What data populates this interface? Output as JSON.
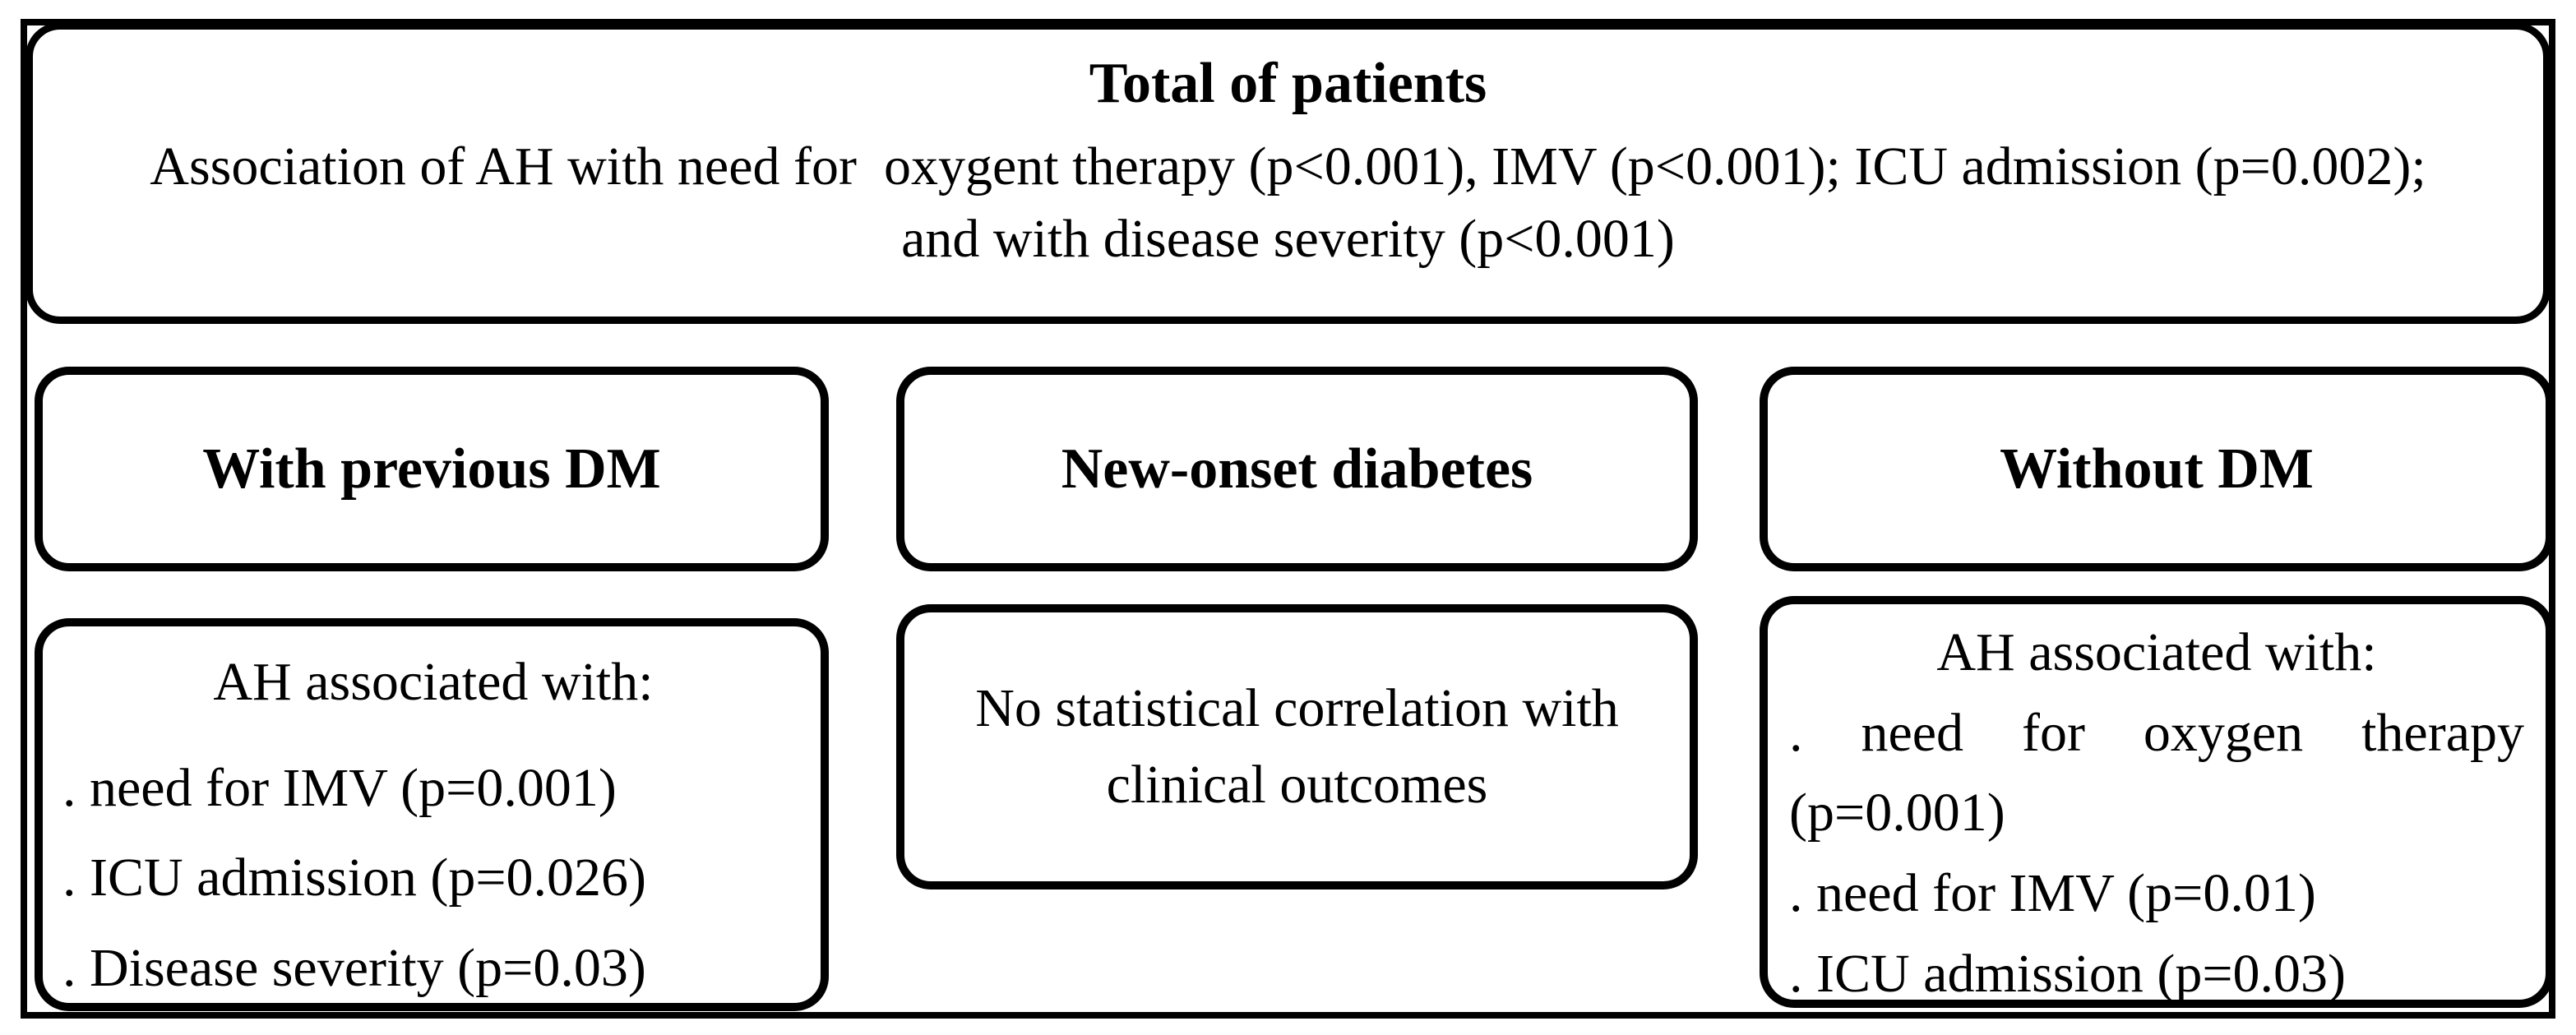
{
  "top_box": {
    "title": "Total of patients",
    "body": "Association of AH with need for  oxygent therapy (p<0.001), IMV (p<0.001); ICU admission (p=0.002);\nand with disease severity (p<0.001)"
  },
  "columns": [
    {
      "header": "With previous DM",
      "content_heading": "AH associated with:",
      "items": [
        ". need for IMV (p=0.001)",
        ". ICU admission (p=0.026)",
        ". Disease severity (p=0.03)"
      ]
    },
    {
      "header": "New-onset diabetes",
      "content_text": "No statistical correlation with\nclinical outcomes"
    },
    {
      "header": "Without DM",
      "content_heading": "AH associated with:",
      "items": [
        ". need for oxygen therapy (p=0.001)",
        ". need for IMV (p=0.01)",
        ". ICU admission (p=0.03)"
      ]
    }
  ],
  "colors": {
    "border": "#000000",
    "background": "#ffffff",
    "text": "#000000"
  }
}
